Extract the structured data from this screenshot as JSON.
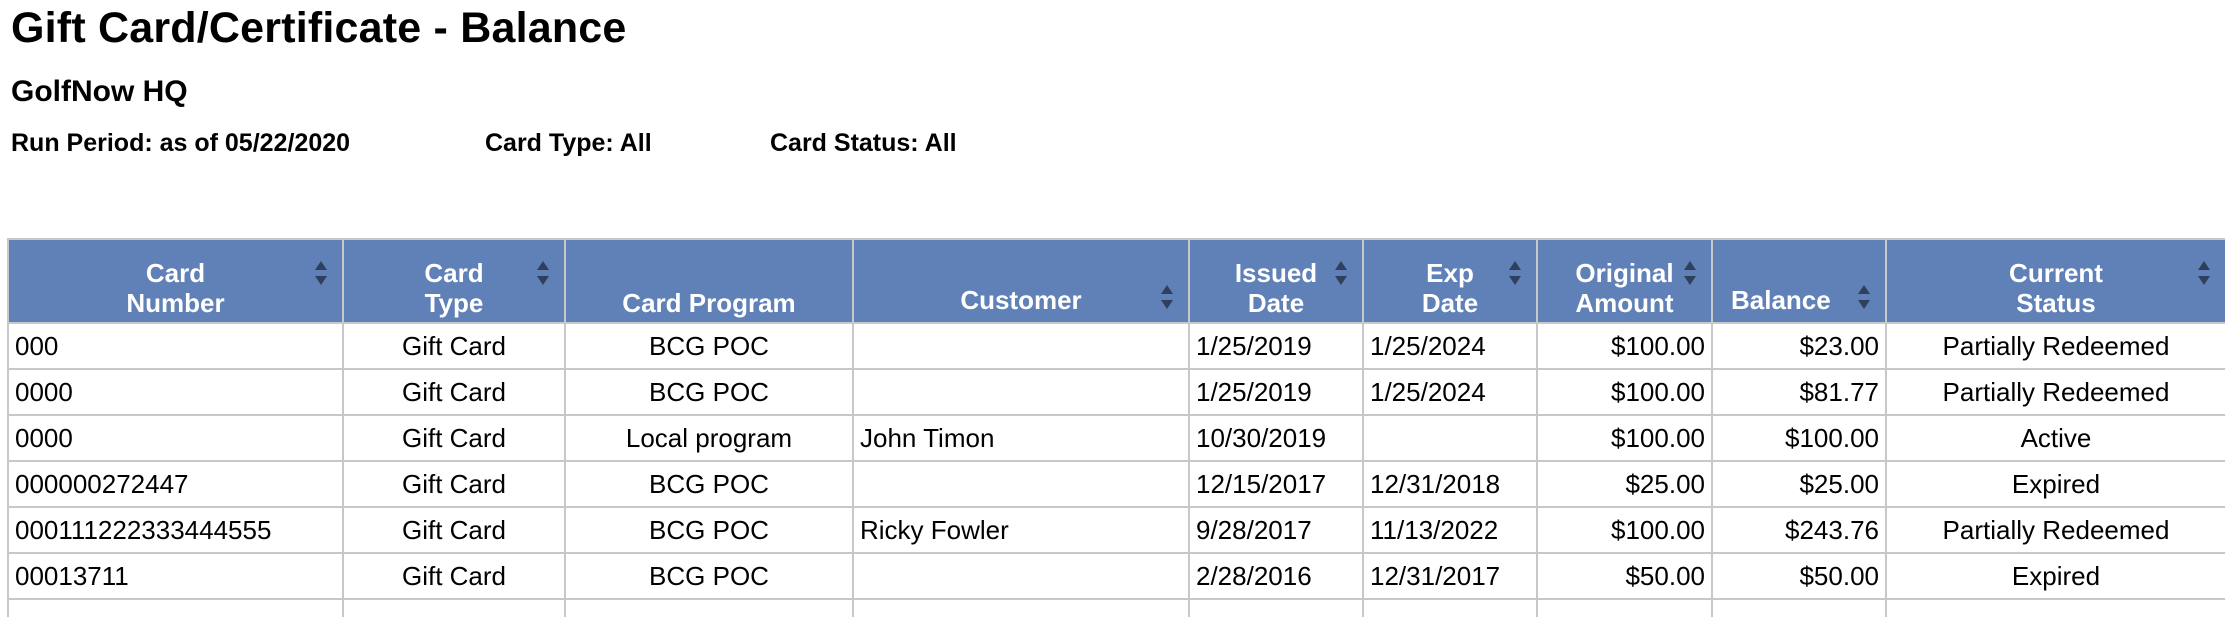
{
  "report": {
    "title": "Gift Card/Certificate - Balance",
    "company": "GolfNow HQ",
    "run_period": "Run Period: as of 05/22/2020",
    "card_type": "Card Type: All",
    "card_status": "Card Status: All"
  },
  "colors": {
    "header_bg": "#5f81b8",
    "header_text": "#ffffff",
    "grid_border": "#c8c8c8"
  },
  "columns": {
    "card_number": [
      "Card",
      "Number"
    ],
    "card_type": [
      "Card",
      "Type"
    ],
    "card_program": "Card Program",
    "customer": "Customer",
    "issued_date": [
      "Issued",
      "Date"
    ],
    "exp_date": [
      "Exp",
      "Date"
    ],
    "original_amount": [
      "Original",
      "Amount"
    ],
    "balance": "Balance",
    "current_status": [
      "Current",
      "Status"
    ]
  },
  "sort_icon": "sort-up-down-icon",
  "rows": [
    {
      "card_number": "000",
      "card_type": "Gift Card",
      "card_program": "BCG POC",
      "customer": "",
      "issued_date": "1/25/2019",
      "exp_date": "1/25/2024",
      "original_amount": "$100.00",
      "balance": "$23.00",
      "current_status": "Partially Redeemed"
    },
    {
      "card_number": "0000",
      "card_type": "Gift Card",
      "card_program": "BCG POC",
      "customer": "",
      "issued_date": "1/25/2019",
      "exp_date": "1/25/2024",
      "original_amount": "$100.00",
      "balance": "$81.77",
      "current_status": "Partially Redeemed"
    },
    {
      "card_number": "0000",
      "card_type": "Gift Card",
      "card_program": "Local program",
      "customer": "John Timon",
      "issued_date": "10/30/2019",
      "exp_date": "",
      "original_amount": "$100.00",
      "balance": "$100.00",
      "current_status": "Active"
    },
    {
      "card_number": "000000272447",
      "card_type": "Gift Card",
      "card_program": "BCG POC",
      "customer": "",
      "issued_date": "12/15/2017",
      "exp_date": "12/31/2018",
      "original_amount": "$25.00",
      "balance": "$25.00",
      "current_status": "Expired"
    },
    {
      "card_number": "000111222333444555",
      "card_type": "Gift Card",
      "card_program": "BCG POC",
      "customer": "Ricky Fowler",
      "issued_date": "9/28/2017",
      "exp_date": "11/13/2022",
      "original_amount": "$100.00",
      "balance": "$243.76",
      "current_status": "Partially Redeemed"
    },
    {
      "card_number": "00013711",
      "card_type": "Gift Card",
      "card_program": "BCG POC",
      "customer": "",
      "issued_date": "2/28/2016",
      "exp_date": "12/31/2017",
      "original_amount": "$50.00",
      "balance": "$50.00",
      "current_status": "Expired"
    },
    {
      "card_number": "",
      "card_type": "",
      "card_program": "",
      "customer": "",
      "issued_date": "",
      "exp_date": "",
      "original_amount": "",
      "balance": "",
      "current_status": ""
    }
  ]
}
